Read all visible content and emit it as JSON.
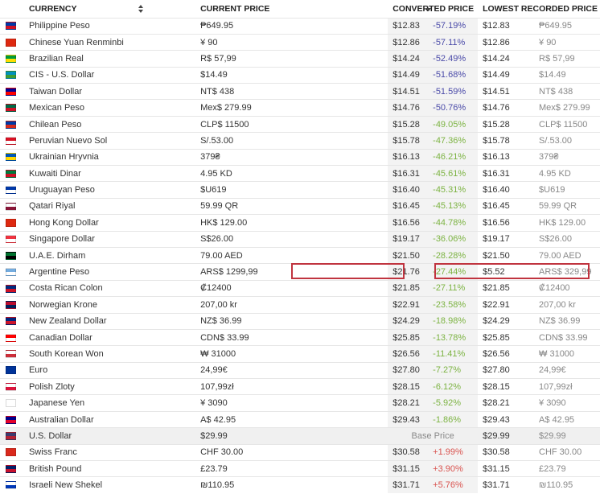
{
  "headers": {
    "currency": "CURRENCY",
    "current": "CURRENT PRICE",
    "converted": "CONVERTED PRICE",
    "lowest": "LOWEST RECORDED PRICE"
  },
  "colors": {
    "strong_negative": "#4a4aa8",
    "negative": "#7cb342",
    "positive": "#d9534f",
    "highlight": "#c0343f"
  },
  "rows": [
    {
      "name": "Philippine Peso",
      "current": "₱649.95",
      "converted": "$12.83",
      "pct": "-57.19%",
      "tone": "neg-strong",
      "low_usd": "$12.83",
      "low_local": "₱649.95",
      "flag": [
        "#0038a8",
        "#ce1126"
      ]
    },
    {
      "name": "Chinese Yuan Renminbi",
      "current": "¥ 90",
      "converted": "$12.86",
      "pct": "-57.11%",
      "tone": "neg-strong",
      "low_usd": "$12.86",
      "low_local": "¥ 90",
      "flag": [
        "#de2910",
        "#de2910"
      ]
    },
    {
      "name": "Brazilian Real",
      "current": "R$ 57,99",
      "converted": "$14.24",
      "pct": "-52.49%",
      "tone": "neg-strong",
      "low_usd": "$14.24",
      "low_local": "R$ 57,99",
      "flag": [
        "#009b3a",
        "#fedf00"
      ]
    },
    {
      "name": "CIS - U.S. Dollar",
      "current": "$14.49",
      "converted": "$14.49",
      "pct": "-51.68%",
      "tone": "neg-strong",
      "low_usd": "$14.49",
      "low_local": "$14.49",
      "flag": [
        "#0092bc",
        "#3f9c35"
      ]
    },
    {
      "name": "Taiwan Dollar",
      "current": "NT$ 438",
      "converted": "$14.51",
      "pct": "-51.59%",
      "tone": "neg-strong",
      "low_usd": "$14.51",
      "low_local": "NT$ 438",
      "flag": [
        "#000095",
        "#fe0000"
      ]
    },
    {
      "name": "Mexican Peso",
      "current": "Mex$ 279.99",
      "converted": "$14.76",
      "pct": "-50.76%",
      "tone": "neg-strong",
      "low_usd": "$14.76",
      "low_local": "Mex$ 279.99",
      "flag": [
        "#006847",
        "#ce1126"
      ]
    },
    {
      "name": "Chilean Peso",
      "current": "CLP$ 11500",
      "converted": "$15.28",
      "pct": "-49.05%",
      "tone": "neg",
      "low_usd": "$15.28",
      "low_local": "CLP$ 11500",
      "flag": [
        "#0039a6",
        "#d52b1e"
      ]
    },
    {
      "name": "Peruvian Nuevo Sol",
      "current": "S/.53.00",
      "converted": "$15.78",
      "pct": "-47.36%",
      "tone": "neg",
      "low_usd": "$15.78",
      "low_local": "S/.53.00",
      "flag": [
        "#d91023",
        "#ffffff"
      ]
    },
    {
      "name": "Ukrainian Hryvnia",
      "current": "379₴",
      "converted": "$16.13",
      "pct": "-46.21%",
      "tone": "neg",
      "low_usd": "$16.13",
      "low_local": "379₴",
      "flag": [
        "#0057b7",
        "#ffd700"
      ]
    },
    {
      "name": "Kuwaiti Dinar",
      "current": "4.95 KD",
      "converted": "$16.31",
      "pct": "-45.61%",
      "tone": "neg",
      "low_usd": "$16.31",
      "low_local": "4.95 KD",
      "flag": [
        "#007a3d",
        "#ce1126"
      ]
    },
    {
      "name": "Uruguayan Peso",
      "current": "$U619",
      "converted": "$16.40",
      "pct": "-45.31%",
      "tone": "neg",
      "low_usd": "$16.40",
      "low_local": "$U619",
      "flag": [
        "#0038a8",
        "#ffffff"
      ]
    },
    {
      "name": "Qatari Riyal",
      "current": "59.99 QR",
      "converted": "$16.45",
      "pct": "-45.13%",
      "tone": "neg",
      "low_usd": "$16.45",
      "low_local": "59.99 QR",
      "flag": [
        "#ffffff",
        "#8a1538"
      ]
    },
    {
      "name": "Hong Kong Dollar",
      "current": "HK$ 129.00",
      "converted": "$16.56",
      "pct": "-44.78%",
      "tone": "neg",
      "low_usd": "$16.56",
      "low_local": "HK$ 129.00",
      "flag": [
        "#de2910",
        "#de2910"
      ]
    },
    {
      "name": "Singapore Dollar",
      "current": "S$26.00",
      "converted": "$19.17",
      "pct": "-36.06%",
      "tone": "neg",
      "low_usd": "$19.17",
      "low_local": "S$26.00",
      "flag": [
        "#ef3340",
        "#ffffff"
      ]
    },
    {
      "name": "U.A.E. Dirham",
      "current": "79.00 AED",
      "converted": "$21.50",
      "pct": "-28.28%",
      "tone": "neg",
      "low_usd": "$21.50",
      "low_local": "79.00 AED",
      "flag": [
        "#00732f",
        "#000000"
      ]
    },
    {
      "name": "Argentine Peso",
      "current": "ARS$ 1299,99",
      "converted": "$21.76",
      "pct": "-27.44%",
      "tone": "neg",
      "low_usd": "$5.52",
      "low_local": "ARS$ 329,99",
      "flag": [
        "#74acdf",
        "#ffffff"
      ]
    },
    {
      "name": "Costa Rican Colon",
      "current": "₡12400",
      "converted": "$21.85",
      "pct": "-27.11%",
      "tone": "neg",
      "low_usd": "$21.85",
      "low_local": "₡12400",
      "flag": [
        "#002b7f",
        "#ce1126"
      ]
    },
    {
      "name": "Norwegian Krone",
      "current": "207,00 kr",
      "converted": "$22.91",
      "pct": "-23.58%",
      "tone": "neg",
      "low_usd": "$22.91",
      "low_local": "207,00 kr",
      "flag": [
        "#ba0c2f",
        "#00205b"
      ]
    },
    {
      "name": "New Zealand Dollar",
      "current": "NZ$ 36.99",
      "converted": "$24.29",
      "pct": "-18.98%",
      "tone": "neg",
      "low_usd": "$24.29",
      "low_local": "NZ$ 36.99",
      "flag": [
        "#00247d",
        "#cc142b"
      ]
    },
    {
      "name": "Canadian Dollar",
      "current": "CDN$ 33.99",
      "converted": "$25.85",
      "pct": "-13.78%",
      "tone": "neg",
      "low_usd": "$25.85",
      "low_local": "CDN$ 33.99",
      "flag": [
        "#ff0000",
        "#ffffff"
      ]
    },
    {
      "name": "South Korean Won",
      "current": "₩ 31000",
      "converted": "$26.56",
      "pct": "-11.41%",
      "tone": "neg",
      "low_usd": "$26.56",
      "low_local": "₩ 31000",
      "flag": [
        "#ffffff",
        "#cd2e3a"
      ]
    },
    {
      "name": "Euro",
      "current": "24,99€",
      "converted": "$27.80",
      "pct": "-7.27%",
      "tone": "neg",
      "low_usd": "$27.80",
      "low_local": "24,99€",
      "flag": [
        "#003399",
        "#003399"
      ]
    },
    {
      "name": "Polish Zloty",
      "current": "107,99zł",
      "converted": "$28.15",
      "pct": "-6.12%",
      "tone": "neg",
      "low_usd": "$28.15",
      "low_local": "107,99zł",
      "flag": [
        "#ffffff",
        "#dc143c"
      ]
    },
    {
      "name": "Japanese Yen",
      "current": "¥ 3090",
      "converted": "$28.21",
      "pct": "-5.92%",
      "tone": "neg",
      "low_usd": "$28.21",
      "low_local": "¥ 3090",
      "flag": [
        "#ffffff",
        "#ffffff"
      ]
    },
    {
      "name": "Australian Dollar",
      "current": "A$ 42.95",
      "converted": "$29.43",
      "pct": "-1.86%",
      "tone": "neg",
      "low_usd": "$29.43",
      "low_local": "A$ 42.95",
      "flag": [
        "#00008b",
        "#e4002b"
      ]
    },
    {
      "name": "U.S. Dollar",
      "current": "$29.99",
      "converted": "",
      "pct": "Base Price",
      "tone": "base",
      "low_usd": "$29.99",
      "low_local": "$29.99",
      "flag": [
        "#3c3b6e",
        "#b22234"
      ]
    },
    {
      "name": "Swiss Franc",
      "current": "CHF 30.00",
      "converted": "$30.58",
      "pct": "+1.99%",
      "tone": "pos",
      "low_usd": "$30.58",
      "low_local": "CHF 30.00",
      "flag": [
        "#da291c",
        "#da291c"
      ]
    },
    {
      "name": "British Pound",
      "current": "£23.79",
      "converted": "$31.15",
      "pct": "+3.90%",
      "tone": "pos",
      "low_usd": "$31.15",
      "low_local": "£23.79",
      "flag": [
        "#012169",
        "#c8102e"
      ]
    },
    {
      "name": "Israeli New Shekel",
      "current": "₪110.95",
      "converted": "$31.71",
      "pct": "+5.76%",
      "tone": "pos",
      "low_usd": "$31.71",
      "low_local": "₪110.95",
      "flag": [
        "#ffffff",
        "#0038b8"
      ]
    }
  ]
}
